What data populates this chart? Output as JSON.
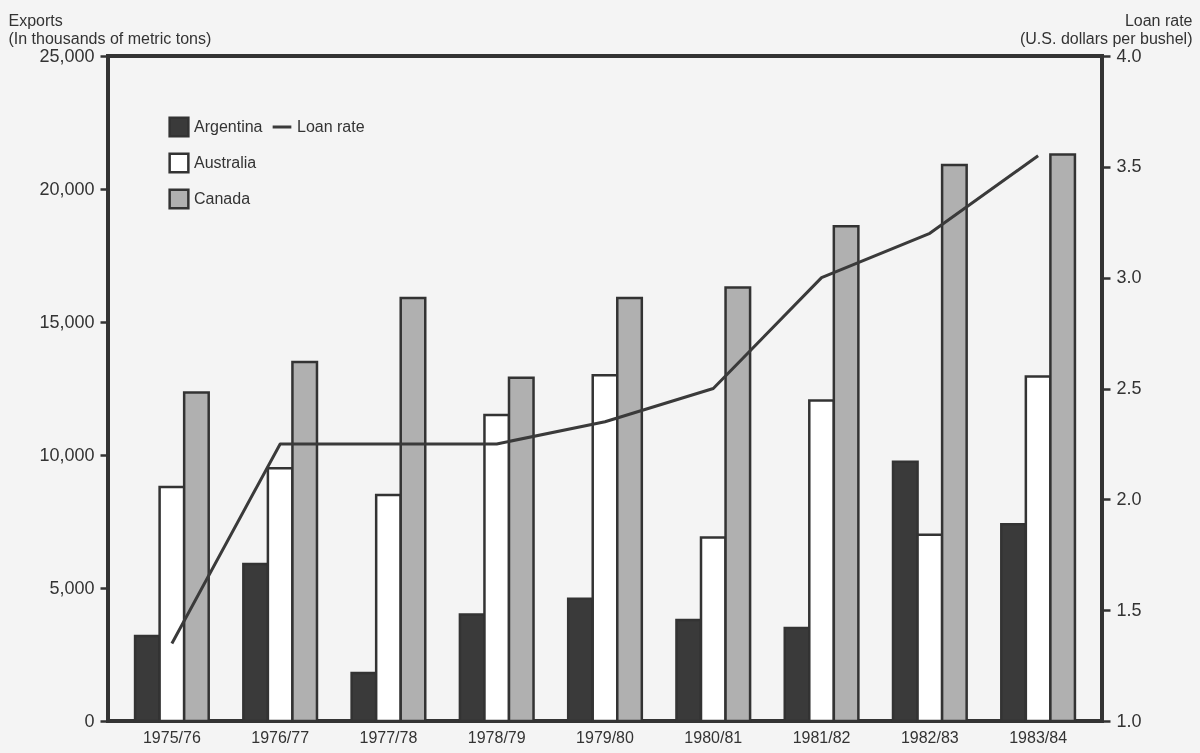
{
  "chart_data": {
    "type": "bar",
    "ylabel": "Exports\n(In thousands of metric tons)",
    "y2label": "Loan rate\n(U.S. dollars per bushel)",
    "categories": [
      "1975/76",
      "1976/77",
      "1977/78",
      "1978/79",
      "1979/80",
      "1980/81",
      "1981/82",
      "1982/83",
      "1983/84"
    ],
    "series": [
      {
        "name": "Argentina",
        "color": "#3a3a3a",
        "values": [
          3200,
          5900,
          1800,
          4000,
          4600,
          3800,
          3500,
          9750,
          7400
        ]
      },
      {
        "name": "Australia",
        "color": "#ffffff",
        "values": [
          8800,
          9500,
          8500,
          11500,
          13000,
          6900,
          12050,
          7000,
          12950
        ]
      },
      {
        "name": "Canada",
        "color": "#b0b0b0",
        "values": [
          12350,
          13500,
          15900,
          12900,
          15900,
          16300,
          18600,
          20900,
          21300
        ]
      },
      {
        "name": "Loan rate",
        "type": "line",
        "axis": "y2",
        "color": "#3a3a3a",
        "values": [
          1.35,
          2.25,
          2.25,
          2.25,
          2.35,
          2.5,
          3.0,
          3.2,
          3.55
        ]
      }
    ],
    "ylim": [
      0,
      25000
    ],
    "yticks": [
      0,
      {
        "value": 5000,
        "label": "5,000"
      },
      {
        "value": 10000,
        "label": "10,000"
      },
      {
        "value": 15000,
        "label": "15,000"
      },
      {
        "value": 20000,
        "label": "20,000"
      },
      {
        "value": 25000,
        "label": "25,000"
      }
    ],
    "y2lim": [
      1.0,
      4.0
    ],
    "y2ticks": [
      {
        "value": 1.0,
        "label": "1.0"
      },
      {
        "value": 1.5,
        "label": "1.5"
      },
      {
        "value": 2.0,
        "label": "2.0"
      },
      {
        "value": 2.5,
        "label": "2.5"
      },
      {
        "value": 3.0,
        "label": "3.0"
      },
      {
        "value": 3.5,
        "label": "3.5"
      },
      {
        "value": 4.0,
        "label": "4.0"
      }
    ],
    "grid": false,
    "legend": "top left",
    "line_style": "solid",
    "marker": "none"
  }
}
